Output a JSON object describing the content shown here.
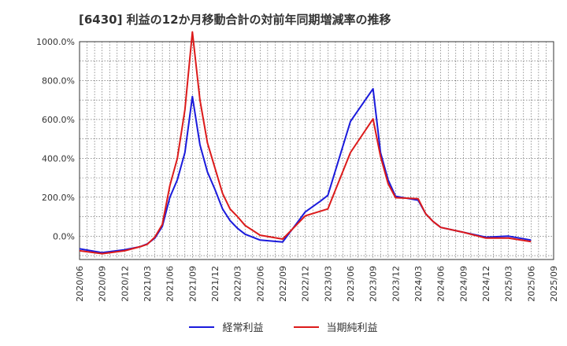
{
  "chart_data": {
    "type": "line",
    "title": "[6430]  利益の12か月移動合計の対前年同期増減率の推移",
    "xlabel": "",
    "ylabel": "",
    "ylim": [
      -120,
      1000
    ],
    "yticks": [
      0,
      200,
      400,
      600,
      800,
      1000
    ],
    "ytick_labels": [
      "0.0%",
      "200.0%",
      "400.0%",
      "600.0%",
      "800.0%",
      "1000.0%"
    ],
    "xtick_labels": [
      "2020/06",
      "2020/09",
      "2020/12",
      "2021/03",
      "2021/06",
      "2021/09",
      "2021/12",
      "2022/03",
      "2022/06",
      "2022/09",
      "2022/12",
      "2023/03",
      "2023/06",
      "2023/09",
      "2023/12",
      "2024/03",
      "2024/06",
      "2024/09",
      "2024/12",
      "2025/03",
      "2025/06",
      "2025/09"
    ],
    "grid": true,
    "legend_position": "bottom",
    "series": [
      {
        "name": "経常利益",
        "color": "#1a1adc",
        "points": [
          [
            "2020/06",
            -65
          ],
          [
            "2020/09",
            -85
          ],
          [
            "2020/12",
            -70
          ],
          [
            "2021/02",
            -55
          ],
          [
            "2021/03",
            -40
          ],
          [
            "2021/04",
            -10
          ],
          [
            "2021/05",
            50
          ],
          [
            "2021/06",
            200
          ],
          [
            "2021/07",
            290
          ],
          [
            "2021/08",
            430
          ],
          [
            "2021/09",
            718
          ],
          [
            "2021/10",
            470
          ],
          [
            "2021/11",
            330
          ],
          [
            "2021/12",
            240
          ],
          [
            "2022/01",
            140
          ],
          [
            "2022/02",
            80
          ],
          [
            "2022/03",
            40
          ],
          [
            "2022/04",
            10
          ],
          [
            "2022/06",
            -20
          ],
          [
            "2022/09",
            -30
          ],
          [
            "2022/12",
            125
          ],
          [
            "2023/02",
            180
          ],
          [
            "2023/03",
            210
          ],
          [
            "2023/06",
            590
          ],
          [
            "2023/09",
            758
          ],
          [
            "2023/10",
            430
          ],
          [
            "2023/11",
            290
          ],
          [
            "2023/12",
            205
          ],
          [
            "2024/03",
            185
          ],
          [
            "2024/04",
            115
          ],
          [
            "2024/05",
            75
          ],
          [
            "2024/06",
            45
          ],
          [
            "2024/09",
            20
          ],
          [
            "2024/12",
            -5
          ],
          [
            "2025/03",
            0
          ],
          [
            "2025/06",
            -20
          ]
        ]
      },
      {
        "name": "当期純利益",
        "color": "#dc1a1a",
        "points": [
          [
            "2020/06",
            -75
          ],
          [
            "2020/09",
            -90
          ],
          [
            "2020/12",
            -75
          ],
          [
            "2021/02",
            -55
          ],
          [
            "2021/03",
            -42
          ],
          [
            "2021/04",
            -5
          ],
          [
            "2021/05",
            60
          ],
          [
            "2021/06",
            260
          ],
          [
            "2021/07",
            400
          ],
          [
            "2021/08",
            650
          ],
          [
            "2021/09",
            1050
          ],
          [
            "2021/10",
            700
          ],
          [
            "2021/11",
            480
          ],
          [
            "2021/12",
            350
          ],
          [
            "2022/01",
            220
          ],
          [
            "2022/02",
            140
          ],
          [
            "2022/03",
            100
          ],
          [
            "2022/04",
            55
          ],
          [
            "2022/06",
            5
          ],
          [
            "2022/09",
            -15
          ],
          [
            "2022/12",
            105
          ],
          [
            "2023/03",
            140
          ],
          [
            "2023/06",
            430
          ],
          [
            "2023/09",
            603
          ],
          [
            "2023/10",
            410
          ],
          [
            "2023/11",
            270
          ],
          [
            "2023/12",
            198
          ],
          [
            "2024/03",
            192
          ],
          [
            "2024/04",
            115
          ],
          [
            "2024/05",
            75
          ],
          [
            "2024/06",
            45
          ],
          [
            "2024/09",
            20
          ],
          [
            "2024/12",
            -10
          ],
          [
            "2025/03",
            -10
          ],
          [
            "2025/06",
            -28
          ]
        ]
      }
    ]
  }
}
